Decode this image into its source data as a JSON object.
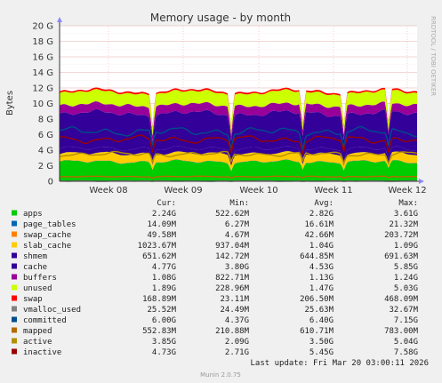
{
  "chart_data": {
    "type": "area",
    "title": "Memory usage - by month",
    "ylabel": "Bytes",
    "xlabel": "",
    "watermark": "RRDTOOL / TOBI OETIKER",
    "ylim": [
      0,
      20
    ],
    "y_unit": "G",
    "yticks": [
      "0",
      "2 G",
      "4 G",
      "6 G",
      "8 G",
      "10 G",
      "12 G",
      "14 G",
      "16 G",
      "18 G",
      "20 G"
    ],
    "xticks": [
      "Week 08",
      "Week 09",
      "Week 10",
      "Week 11",
      "Week 12"
    ],
    "grid": true,
    "legend_headers": {
      "cur": "Cur:",
      "min": "Min:",
      "avg": "Avg:",
      "max": "Max:"
    },
    "series": [
      {
        "name": "apps",
        "color": "#00cc00",
        "kind": "area",
        "approx": 2.5,
        "cur": "2.24G",
        "min": "522.62M",
        "avg": "2.82G",
        "max": "3.61G"
      },
      {
        "name": "page_tables",
        "color": "#0066b3",
        "kind": "area",
        "approx": 0.02,
        "cur": "14.09M",
        "min": "6.27M",
        "avg": "16.61M",
        "max": "21.32M"
      },
      {
        "name": "swap_cache",
        "color": "#ff8000",
        "kind": "area",
        "approx": 0.05,
        "cur": "49.58M",
        "min": "4.67M",
        "avg": "42.66M",
        "max": "203.72M"
      },
      {
        "name": "slab_cache",
        "color": "#ffcc00",
        "kind": "area",
        "approx": 1.0,
        "cur": "1023.67M",
        "min": "937.04M",
        "avg": "1.04G",
        "max": "1.09G"
      },
      {
        "name": "shmem",
        "color": "#330099",
        "kind": "area",
        "approx": 0.65,
        "cur": "651.62M",
        "min": "142.72M",
        "avg": "644.85M",
        "max": "691.63M"
      },
      {
        "name": "cache",
        "color": "#330099",
        "kind": "area",
        "approx": 4.5,
        "cur": "4.77G",
        "min": "3.80G",
        "avg": "4.53G",
        "max": "5.85G"
      },
      {
        "name": "buffers",
        "color": "#990099",
        "kind": "area",
        "approx": 1.1,
        "cur": "1.08G",
        "min": "822.71M",
        "avg": "1.13G",
        "max": "1.24G"
      },
      {
        "name": "unused",
        "color": "#ccff00",
        "kind": "area",
        "approx": 1.6,
        "cur": "1.89G",
        "min": "228.96M",
        "avg": "1.47G",
        "max": "5.03G"
      },
      {
        "name": "swap",
        "color": "#ff0000",
        "kind": "area",
        "approx": 0.2,
        "cur": "168.89M",
        "min": "23.11M",
        "avg": "206.50M",
        "max": "468.09M"
      },
      {
        "name": "vmalloc_used",
        "color": "#808080",
        "kind": "line",
        "approx": 0.03,
        "cur": "25.52M",
        "min": "24.49M",
        "avg": "25.63M",
        "max": "32.67M"
      },
      {
        "name": "committed",
        "color": "#004d8c",
        "kind": "line",
        "approx": 6.4,
        "cur": "6.00G",
        "min": "4.37G",
        "avg": "6.40G",
        "max": "7.15G"
      },
      {
        "name": "mapped",
        "color": "#b36b00",
        "kind": "line",
        "approx": 0.6,
        "cur": "552.83M",
        "min": "210.88M",
        "avg": "610.71M",
        "max": "783.00M"
      },
      {
        "name": "active",
        "color": "#b38f00",
        "kind": "line",
        "approx": 3.5,
        "cur": "3.85G",
        "min": "2.09G",
        "avg": "3.50G",
        "max": "5.04G"
      },
      {
        "name": "inactive",
        "color": "#990000",
        "kind": "line",
        "approx": 5.4,
        "cur": "4.73G",
        "min": "2.71G",
        "avg": "5.45G",
        "max": "7.58G"
      }
    ],
    "last_update": "Last update: Fri Mar 20 03:00:11 2026",
    "footer": "Munin 2.0.75"
  }
}
